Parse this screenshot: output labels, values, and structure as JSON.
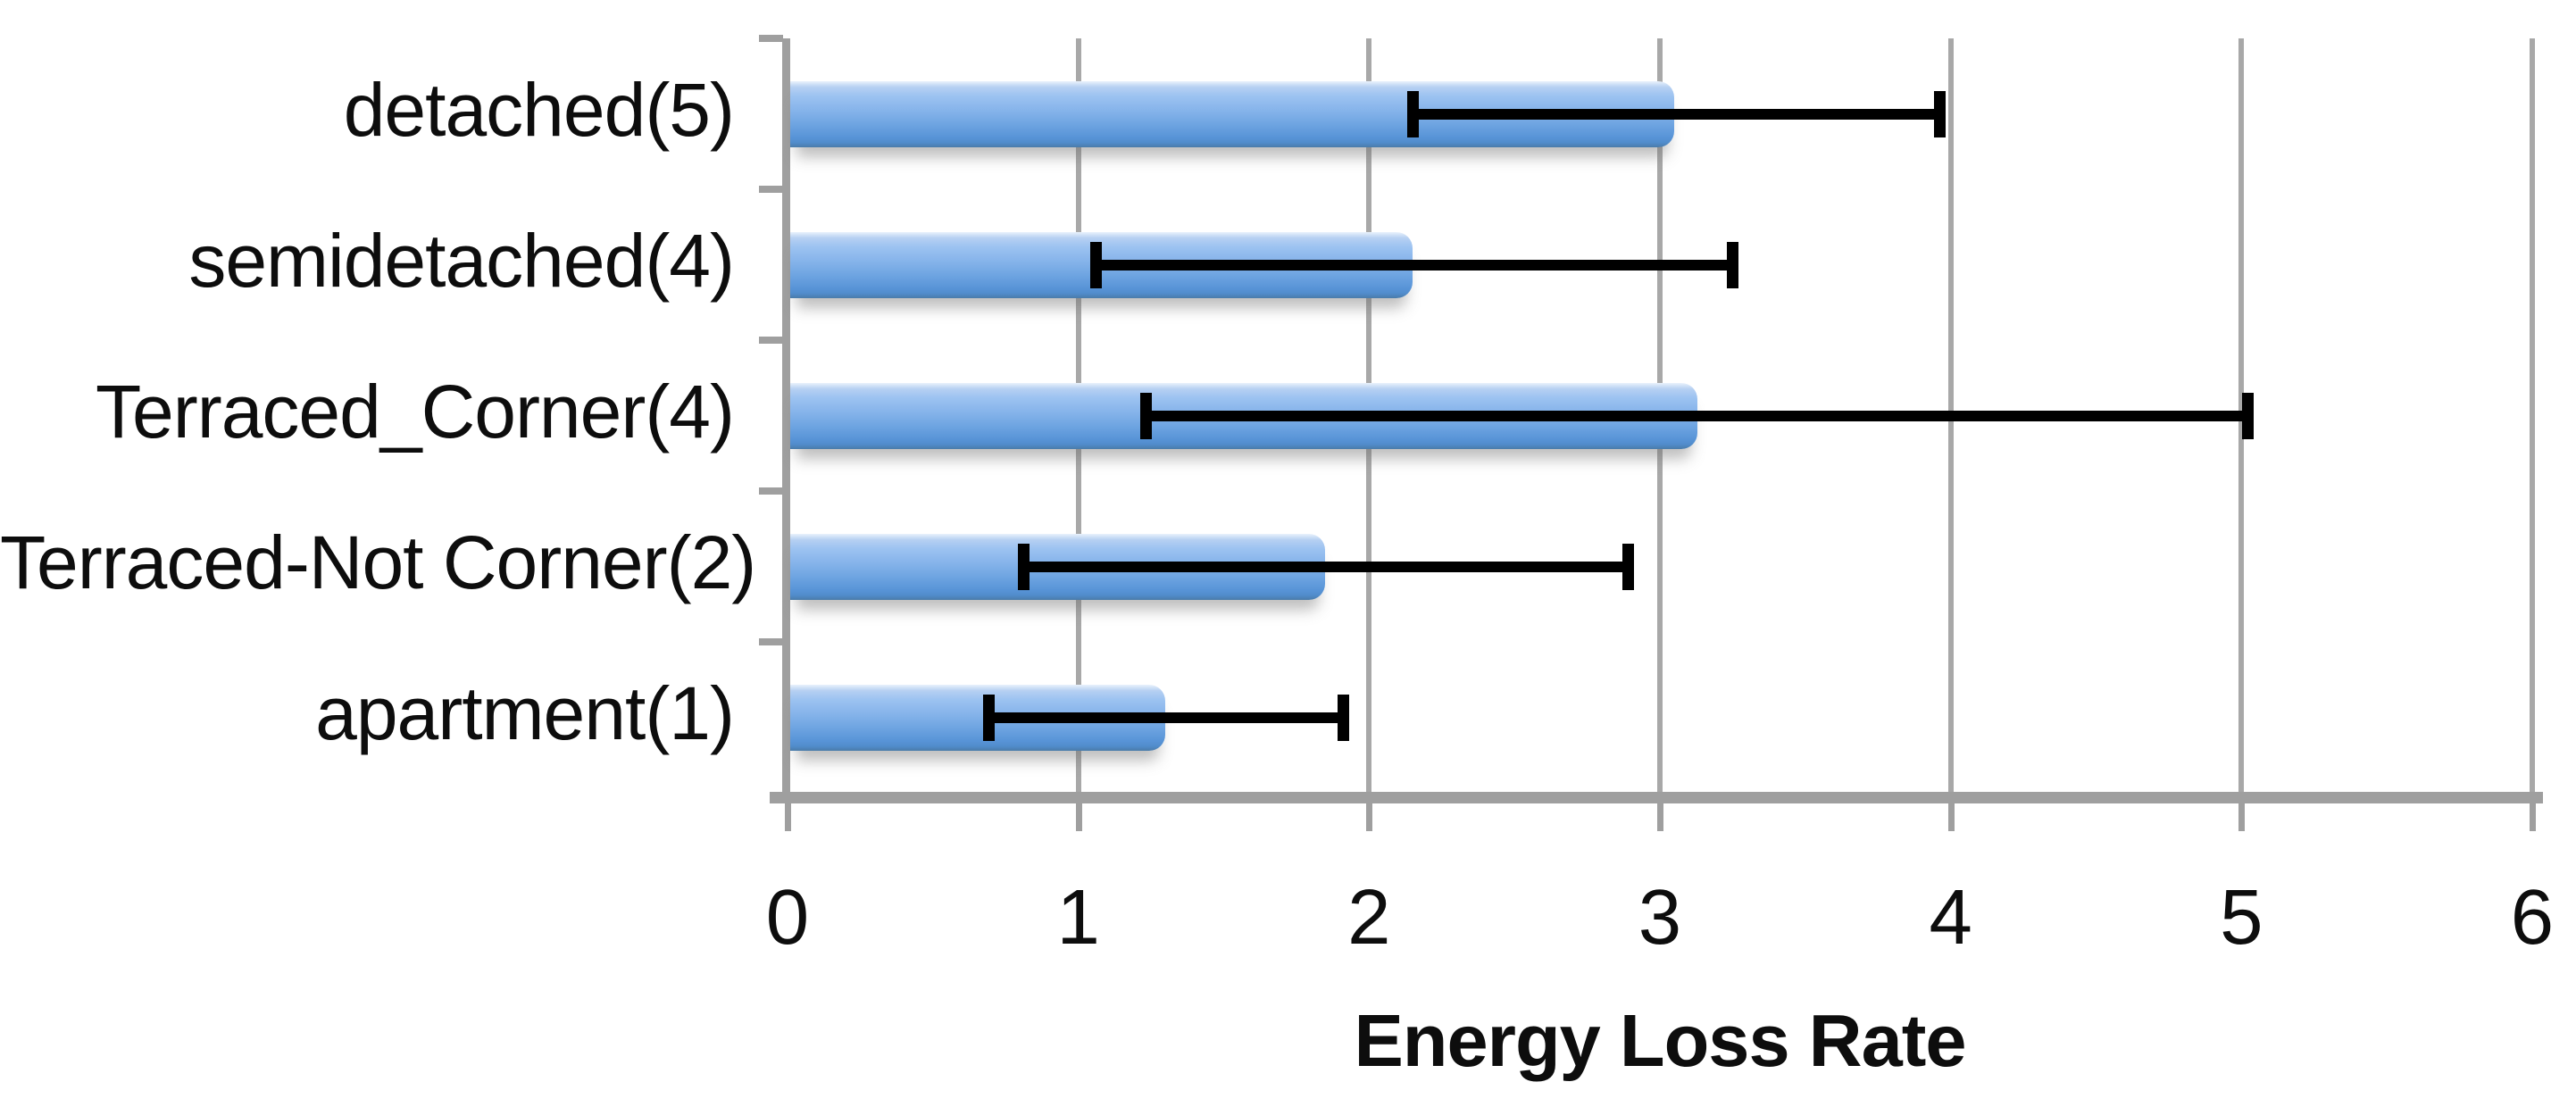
{
  "chart_data": {
    "type": "bar",
    "orientation": "horizontal",
    "title": "",
    "xlabel": "Energy Loss Rate",
    "ylabel": "",
    "categories": [
      "detached(5)",
      "semidetached(4)",
      "Terraced_Corner(4)",
      "Terraced-Not Corner(2)",
      "apartment(1)"
    ],
    "values": [
      3.05,
      2.15,
      3.13,
      1.85,
      1.3
    ],
    "error_ranges": [
      [
        2.15,
        3.96
      ],
      [
        1.06,
        3.25
      ],
      [
        1.23,
        5.02
      ],
      [
        0.81,
        2.89
      ],
      [
        0.69,
        1.91
      ]
    ],
    "xticks": [
      "0",
      "1",
      "2",
      "3",
      "4",
      "5",
      "6"
    ],
    "xlim": [
      0,
      6
    ],
    "grid": true,
    "legend": "none",
    "bar_color": "#6FA3DE",
    "error_color": "#000000",
    "gridline_color": "#A8A8A8",
    "axis_color": "#9F9F9F",
    "text_color": "#0D0D0D",
    "background_color": "#FFFFFF"
  }
}
